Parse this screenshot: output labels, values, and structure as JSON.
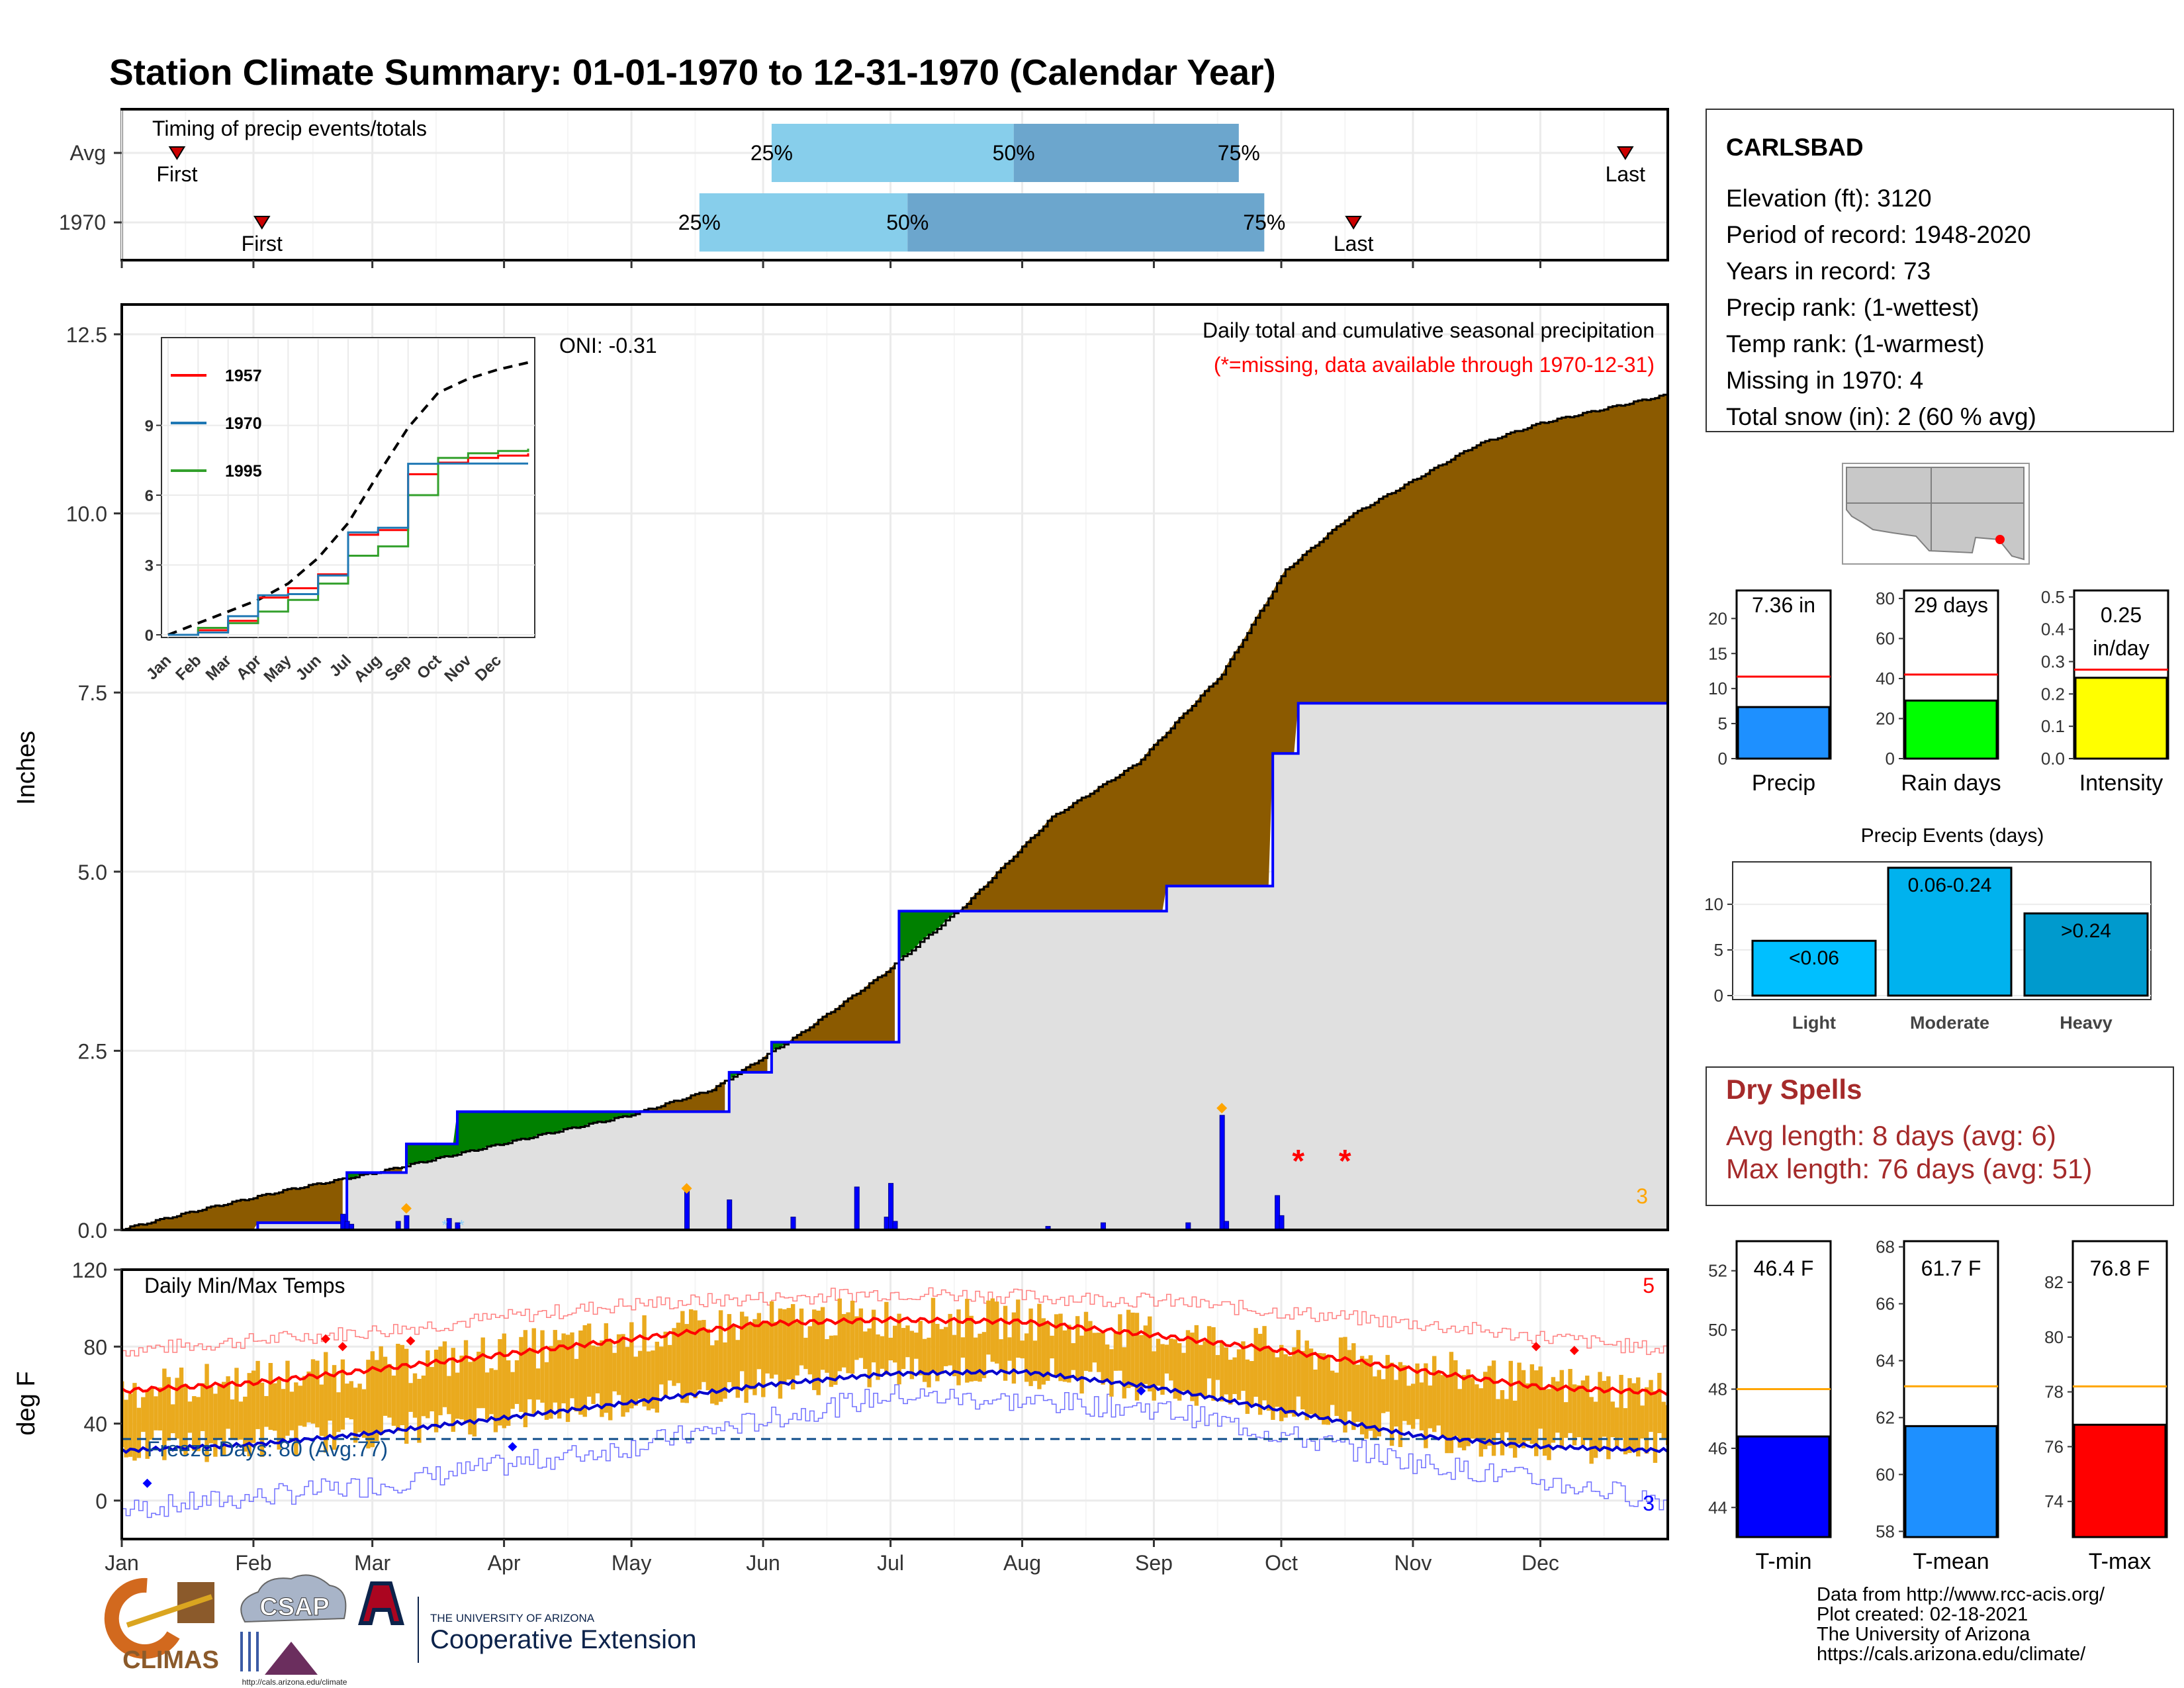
{
  "title": "Station Climate Summary: 01-01-1970 to 12-31-1970 (Calendar Year)",
  "colors": {
    "title": "#000080",
    "cum_precip": "#8B5A00",
    "below_avg": "#008000",
    "avg_area": "#E0E0E0",
    "avg_line": "#0000FF",
    "bars": "#0000FF",
    "tmax": "#FF0000",
    "tmin": "#0000CD",
    "temp_bar": "#EAAA1E",
    "dry_spell": "#A52A2A",
    "timing_q1": "#87CEEB",
    "timing_q2": "#6CA6CD"
  },
  "timing": {
    "title": "Timing of precip events/totals",
    "rows": [
      {
        "label": "Avg",
        "first_label": "First",
        "last_label": "Last",
        "first_doy": 14,
        "last_doy": 355,
        "q25": 154,
        "q50": 211,
        "q75": 264,
        "q25_label": "25%",
        "q50_label": "50%",
        "q75_label": "75%"
      },
      {
        "label": "1970",
        "first_label": "First",
        "last_label": "Last",
        "first_doy": 34,
        "last_doy": 291,
        "q25": 137,
        "q50": 186,
        "q75": 270,
        "q25_label": "25%",
        "q50_label": "50%",
        "q75_label": "75%"
      }
    ]
  },
  "station": {
    "name": "CARLSBAD",
    "lines": [
      "Elevation (ft): 3120",
      "Period of record: 1948-2020",
      "Years in record: 73",
      "Precip rank:  (1-wettest)",
      "Temp rank:  (1-warmest)",
      "Missing in 1970: 4",
      "Total snow (in): 2 (60 % avg)"
    ]
  },
  "precip_panel": {
    "ylabel": "Inches",
    "yticks": [
      "0.0",
      "2.5",
      "5.0",
      "7.5",
      "10.0",
      "12.5"
    ],
    "ylim": [
      0,
      12.5
    ],
    "oni": "ONI: -0.31",
    "caption": "Daily total and cumulative seasonal precipitation",
    "missing_note": "(*=missing, data available through 1970-12-31)",
    "corner_count": "3",
    "missing_marker": "*"
  },
  "inset": {
    "legend": [
      "1957",
      "1970",
      "1995"
    ],
    "yticks": [
      "0",
      "3",
      "6",
      "9"
    ],
    "xticks": [
      "Jan",
      "Feb",
      "Mar",
      "Apr",
      "May",
      "Jun",
      "Jul",
      "Aug",
      "Sep",
      "Oct",
      "Nov",
      "Dec"
    ]
  },
  "temp_panel": {
    "ylabel": "deg F",
    "yticks": [
      "0",
      "40",
      "80",
      "120"
    ],
    "title": "Daily Min/Max Temps",
    "freeze": "Freeze Days: 80 (Avg:77)",
    "max_count": "5",
    "min_count": "3",
    "freeze_line": 32
  },
  "months": [
    "Jan",
    "Feb",
    "Mar",
    "Apr",
    "May",
    "Jun",
    "Jul",
    "Aug",
    "Sep",
    "Oct",
    "Nov",
    "Dec"
  ],
  "summary_bars": [
    {
      "label": "Precip",
      "value_label": "7.36 in",
      "value": 7.36,
      "avg": 11.7,
      "ymax": 24,
      "yticks": [
        "0",
        "5",
        "10",
        "15",
        "20"
      ],
      "color": "#1E90FF"
    },
    {
      "label": "Rain days",
      "value_label": "29 days",
      "value": 29,
      "avg": 42,
      "ymax": 84,
      "yticks": [
        "0",
        "20",
        "40",
        "60",
        "80"
      ],
      "color": "#00FF00"
    },
    {
      "label": "Intensity",
      "value_label": "0.25 in/day",
      "value": 0.25,
      "avg": 0.275,
      "ymax": 0.52,
      "yticks": [
        "0.0",
        "0.1",
        "0.2",
        "0.3",
        "0.4",
        "0.5"
      ],
      "color": "#FFFF00"
    }
  ],
  "events": {
    "title": "Precip Events (days)",
    "yticks": [
      "0",
      "5",
      "10"
    ],
    "bars": [
      {
        "label": "Light",
        "value_label": "<0.06",
        "value": 6,
        "color": "#00BFFF"
      },
      {
        "label": "Moderate",
        "value_label": "0.06-0.24",
        "value": 14,
        "color": "#00B2EE"
      },
      {
        "label": "Heavy",
        "value_label": ">0.24",
        "value": 9,
        "color": "#009ACD"
      }
    ]
  },
  "dry_spells": {
    "title": "Dry Spells",
    "avg_length": "Avg length: 8 days (avg: 6)",
    "max_length": "Max length: 76 days (avg: 51)"
  },
  "temp_bars": [
    {
      "label": "T-min",
      "value_label": "46.4 F",
      "value": 46.4,
      "avg": 48.0,
      "ymin": 43,
      "ymax": 53,
      "yticks": [
        "44",
        "46",
        "48",
        "50",
        "52"
      ],
      "color": "#0000FF"
    },
    {
      "label": "T-mean",
      "value_label": "61.7 F",
      "value": 61.7,
      "avg": 63.1,
      "ymin": 57.8,
      "ymax": 68.2,
      "yticks": [
        "58",
        "60",
        "62",
        "64",
        "66",
        "68"
      ],
      "color": "#1E90FF"
    },
    {
      "label": "T-max",
      "value_label": "76.8 F",
      "value": 76.8,
      "avg": 78.2,
      "ymin": 72.7,
      "ymax": 83.5,
      "yticks": [
        "74",
        "76",
        "78",
        "80",
        "82"
      ],
      "color": "#FF0000"
    }
  ],
  "footer": {
    "lines": [
      "Data from http://www.rcc-acis.org/",
      "Plot created: 02-18-2021",
      "The University of Arizona",
      "https://cals.arizona.edu/climate/"
    ],
    "climas": "CLIMAS",
    "csap": "CSAP",
    "csap_url": "http://cals.arizona.edu/climate",
    "ua_top": "THE UNIVERSITY OF ARIZONA",
    "ua_bottom": "Cooperative Extension"
  },
  "chart_data": [
    {
      "type": "area",
      "title": "Daily total and cumulative seasonal precipitation",
      "ylabel": "Inches",
      "ylim": [
        0,
        12.5
      ],
      "xlim_doy": [
        1,
        365
      ],
      "avg_cumulative": {
        "doy": [
          1,
          20,
          40,
          60,
          80,
          100,
          120,
          140,
          160,
          180,
          200,
          220,
          240,
          260,
          275,
          290,
          305,
          320,
          335,
          350,
          365
        ],
        "values": [
          0,
          0.28,
          0.55,
          0.78,
          1.05,
          1.32,
          1.58,
          1.95,
          2.7,
          3.55,
          4.55,
          5.75,
          6.5,
          7.75,
          9.2,
          9.95,
          10.45,
          10.95,
          11.25,
          11.45,
          11.65
        ]
      },
      "cumulative_1970": {
        "doy": [
          1,
          33,
          53,
          54,
          66,
          68,
          77,
          80,
          134,
          144,
          154,
          176,
          184,
          199,
          247,
          261,
          272,
          274,
          278,
          365
        ],
        "values": [
          0,
          0.1,
          0.1,
          0.8,
          0.8,
          1.2,
          1.2,
          1.65,
          1.65,
          2.2,
          2.62,
          2.62,
          4.45,
          4.45,
          4.8,
          4.8,
          6.65,
          6.65,
          7.35,
          7.36
        ]
      },
      "daily_precip": {
        "doy": [
          53,
          54,
          55,
          66,
          68,
          78,
          80,
          134,
          144,
          159,
          174,
          181,
          182,
          183,
          219,
          232,
          252,
          260,
          261,
          273,
          274
        ],
        "values": [
          0.22,
          0.12,
          0.08,
          0.12,
          0.2,
          0.16,
          0.1,
          0.55,
          0.42,
          0.18,
          0.6,
          0.18,
          0.65,
          0.12,
          0.05,
          0.1,
          0.1,
          1.6,
          0.12,
          0.48,
          0.2
        ]
      },
      "missing_doy": [
        278,
        289
      ]
    },
    {
      "type": "line",
      "title": "Daily Min/Max Temps",
      "ylabel": "deg F",
      "ylim": [
        -20,
        120
      ],
      "tmax_avg": {
        "doy": [
          1,
          31,
          60,
          91,
          121,
          152,
          182,
          213,
          244,
          274,
          305,
          335,
          365
        ],
        "values": [
          57,
          61,
          68,
          76,
          84,
          92,
          94,
          93,
          86,
          78,
          68,
          59,
          56
        ]
      },
      "tmin_avg": {
        "doy": [
          1,
          31,
          60,
          91,
          121,
          152,
          182,
          213,
          244,
          274,
          305,
          335,
          365
        ],
        "values": [
          26,
          29,
          35,
          43,
          51,
          60,
          66,
          67,
          59,
          47,
          34,
          28,
          26
        ]
      },
      "tmax_record": {
        "doy": [
          1,
          60,
          120,
          182,
          244,
          305,
          365
        ],
        "values": [
          78,
          88,
          102,
          108,
          104,
          92,
          78
        ]
      },
      "tmin_record": {
        "doy": [
          1,
          60,
          120,
          182,
          244,
          305,
          365
        ],
        "values": [
          -5,
          8,
          28,
          55,
          48,
          20,
          0
        ]
      }
    }
  ]
}
